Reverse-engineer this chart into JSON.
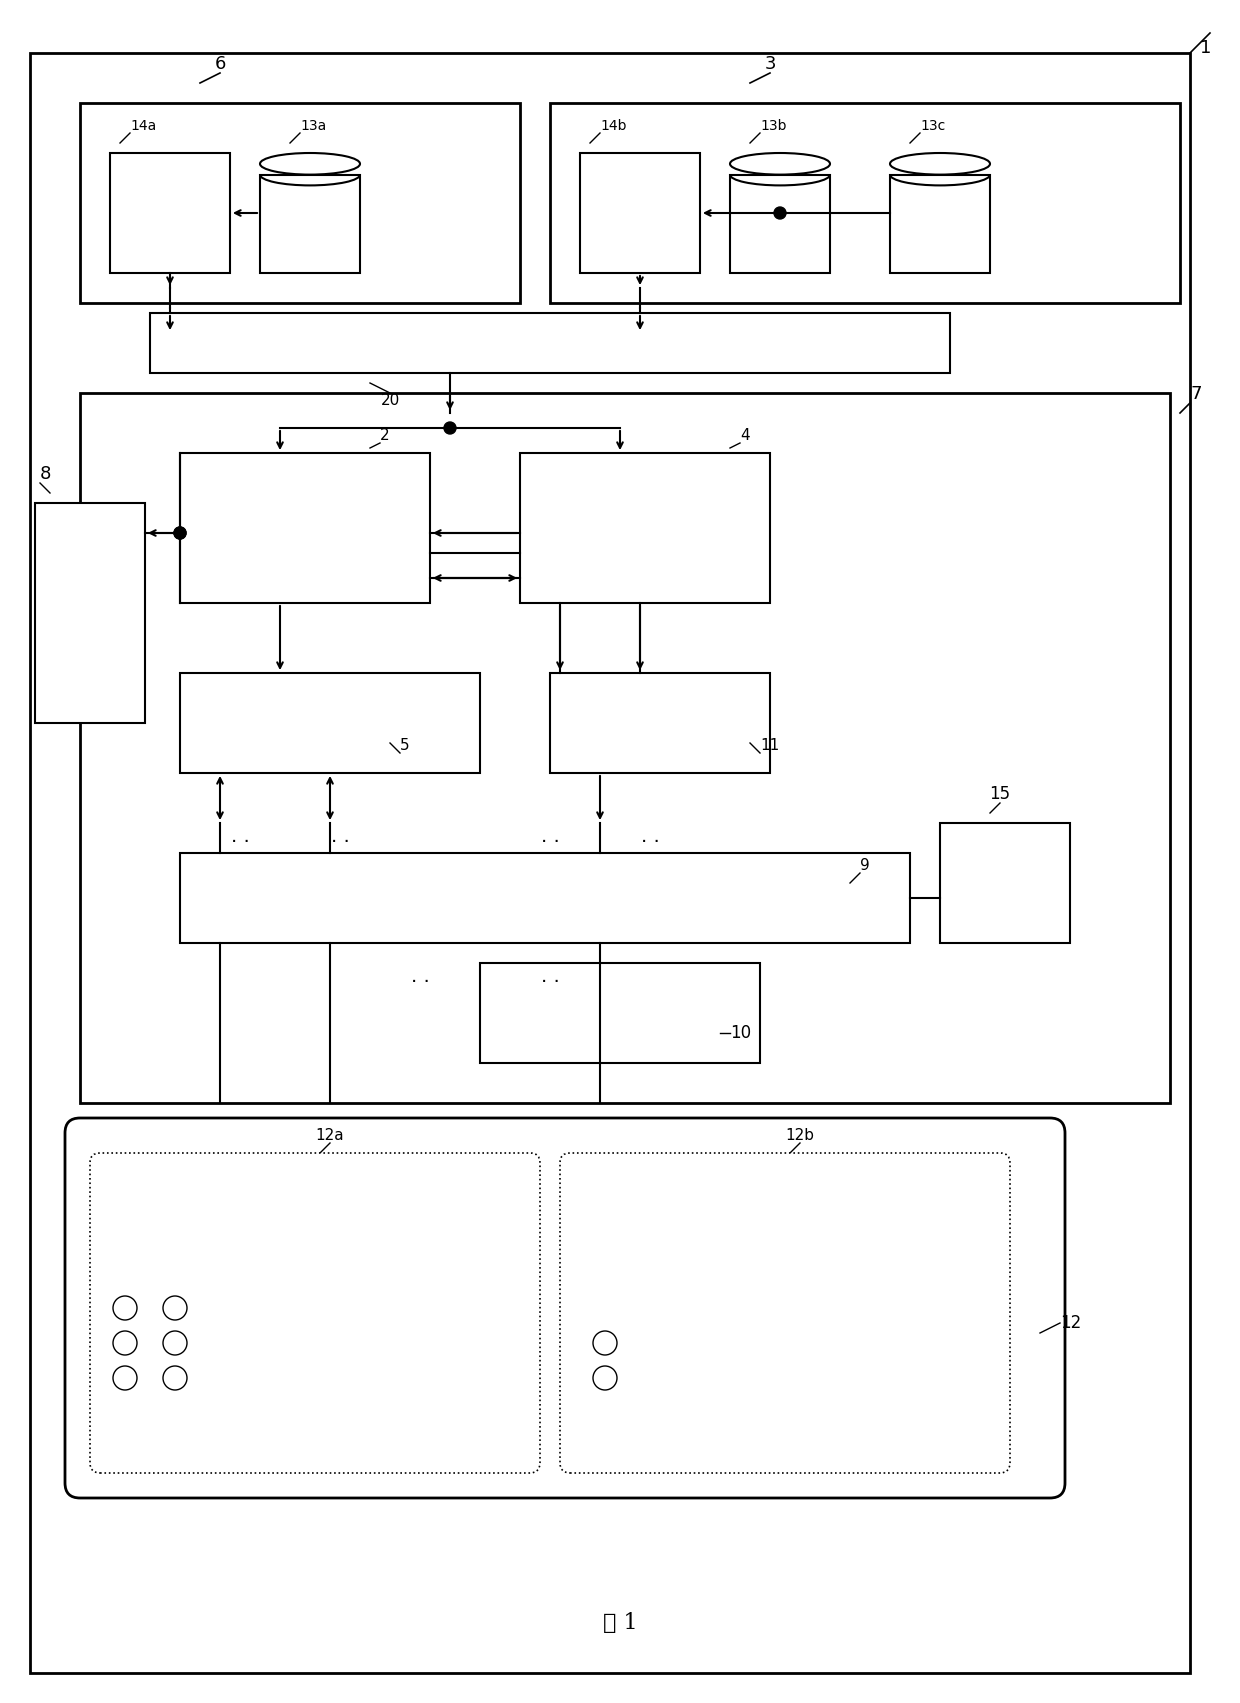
{
  "title": "图 1",
  "bg_color": "#ffffff",
  "border_color": "#000000",
  "label_1": "1",
  "label_2": "2",
  "label_3": "3",
  "label_4": "4",
  "label_5": "5",
  "label_6": "6",
  "label_7": "7",
  "label_8": "8",
  "label_9": "9",
  "label_10": "10",
  "label_11": "11",
  "label_12": "12",
  "label_12a": "12a",
  "label_12b": "12b",
  "label_13a": "13a",
  "label_13b": "13b",
  "label_13c": "13c",
  "label_14a": "14a",
  "label_14b": "14b",
  "label_15": "15",
  "label_20": "20"
}
